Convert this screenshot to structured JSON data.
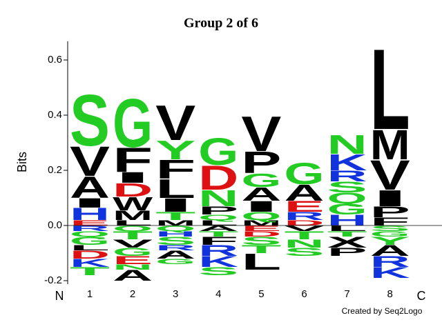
{
  "chart_data": {
    "type": "logo",
    "title": "Group 2 of 6",
    "y_label": "Bits",
    "n_label": "N",
    "c_label": "C",
    "credit": "Created by Seq2Logo",
    "categories": [
      "1",
      "2",
      "3",
      "4",
      "5",
      "6",
      "7",
      "8"
    ],
    "ylim": [
      -0.2125,
      0.6675
    ],
    "yticks": [
      -0.2,
      {
        "value": 0,
        "label": "0.0"
      },
      0.2,
      0.4,
      0.6
    ],
    "letter_colors": {
      "A": "#000000",
      "V": "#000000",
      "L": "#000000",
      "I": "#000000",
      "P": "#000000",
      "F": "#000000",
      "M": "#000000",
      "W": "#000000",
      "X": "#000000",
      "G": "#22cc22",
      "S": "#22cc22",
      "T": "#22cc22",
      "Y": "#22cc22",
      "N": "#22cc22",
      "Q": "#22cc22",
      "C": "#22cc22",
      "K": "#1133dd",
      "R": "#1133dd",
      "H": "#1133dd",
      "D": "#dd1111",
      "E": "#dd1111"
    },
    "stacks": [
      {
        "above": [
          {
            "letter": "E",
            "height": 0.02
          },
          {
            "letter": "H",
            "height": 0.045
          },
          {
            "letter": "I",
            "height": 0.035
          },
          {
            "letter": "A",
            "height": 0.08
          },
          {
            "letter": "V",
            "height": 0.11
          },
          {
            "letter": "S",
            "height": 0.19
          }
        ],
        "below": [
          {
            "letter": "R",
            "height": 0.02
          },
          {
            "letter": "Q",
            "height": 0.02
          },
          {
            "letter": "G",
            "height": 0.03
          },
          {
            "letter": "L",
            "height": 0.02
          },
          {
            "letter": "D",
            "height": 0.03
          },
          {
            "letter": "K",
            "height": 0.03
          },
          {
            "letter": "T",
            "height": 0.03
          }
        ]
      },
      {
        "above": [
          {
            "letter": "L",
            "height": 0.02
          },
          {
            "letter": "M",
            "height": 0.035
          },
          {
            "letter": "W",
            "height": 0.05
          },
          {
            "letter": "D",
            "height": 0.05
          },
          {
            "letter": "I",
            "height": 0.04
          },
          {
            "letter": "F",
            "height": 0.09
          },
          {
            "letter": "G",
            "height": 0.18
          }
        ],
        "below": [
          {
            "letter": "Q",
            "height": 0.02
          },
          {
            "letter": "T",
            "height": 0.03
          },
          {
            "letter": "V",
            "height": 0.03
          },
          {
            "letter": "G",
            "height": 0.03
          },
          {
            "letter": "E",
            "height": 0.03
          },
          {
            "letter": "N",
            "height": 0.02
          },
          {
            "letter": "A",
            "height": 0.04
          }
        ]
      },
      {
        "above": [
          {
            "letter": "M",
            "height": 0.02
          },
          {
            "letter": "T",
            "height": 0.03
          },
          {
            "letter": "I",
            "height": 0.05
          },
          {
            "letter": "L",
            "height": 0.07
          },
          {
            "letter": "F",
            "height": 0.07
          },
          {
            "letter": "Y",
            "height": 0.07
          },
          {
            "letter": "V",
            "height": 0.13
          }
        ],
        "below": [
          {
            "letter": "Q",
            "height": 0.02
          },
          {
            "letter": "H",
            "height": 0.02
          },
          {
            "letter": "S",
            "height": 0.03
          },
          {
            "letter": "R",
            "height": 0.02
          },
          {
            "letter": "A",
            "height": 0.03
          },
          {
            "letter": "G",
            "height": 0.02
          }
        ]
      },
      {
        "above": [
          {
            "letter": "L",
            "height": 0.02
          },
          {
            "letter": "Q",
            "height": 0.02
          },
          {
            "letter": "P",
            "height": 0.03
          },
          {
            "letter": "N",
            "height": 0.06
          },
          {
            "letter": "D",
            "height": 0.09
          },
          {
            "letter": "G",
            "height": 0.1
          }
        ],
        "below": [
          {
            "letter": "A",
            "height": 0.02
          },
          {
            "letter": "T",
            "height": 0.02
          },
          {
            "letter": "F",
            "height": 0.03
          },
          {
            "letter": "R",
            "height": 0.04
          },
          {
            "letter": "K",
            "height": 0.04
          },
          {
            "letter": "S",
            "height": 0.03
          }
        ]
      },
      {
        "above": [
          {
            "letter": "M",
            "height": 0.02
          },
          {
            "letter": "Q",
            "height": 0.03
          },
          {
            "letter": "I",
            "height": 0.04
          },
          {
            "letter": "A",
            "height": 0.05
          },
          {
            "letter": "G",
            "height": 0.05
          },
          {
            "letter": "P",
            "height": 0.08
          },
          {
            "letter": "V",
            "height": 0.13
          }
        ],
        "below": [
          {
            "letter": "E",
            "height": 0.02
          },
          {
            "letter": "D",
            "height": 0.02
          },
          {
            "letter": "S",
            "height": 0.03
          },
          {
            "letter": "T",
            "height": 0.03
          },
          {
            "letter": "L",
            "height": 0.06
          }
        ]
      },
      {
        "above": [
          {
            "letter": "D",
            "height": 0.02
          },
          {
            "letter": "R",
            "height": 0.03
          },
          {
            "letter": "E",
            "height": 0.04
          },
          {
            "letter": "A",
            "height": 0.06
          },
          {
            "letter": "G",
            "height": 0.08
          }
        ],
        "below": [
          {
            "letter": "V",
            "height": 0.02
          },
          {
            "letter": "T",
            "height": 0.03
          },
          {
            "letter": "N",
            "height": 0.03
          },
          {
            "letter": "S",
            "height": 0.03
          }
        ]
      },
      {
        "above": [
          {
            "letter": "H",
            "height": 0.04
          },
          {
            "letter": "G",
            "height": 0.04
          },
          {
            "letter": "Q",
            "height": 0.04
          },
          {
            "letter": "S",
            "height": 0.04
          },
          {
            "letter": "R",
            "height": 0.04
          },
          {
            "letter": "K",
            "height": 0.06
          },
          {
            "letter": "N",
            "height": 0.07
          }
        ],
        "below": [
          {
            "letter": "L",
            "height": 0.02
          },
          {
            "letter": "T",
            "height": 0.02
          },
          {
            "letter": "X",
            "height": 0.04
          },
          {
            "letter": "P",
            "height": 0.03
          }
        ]
      },
      {
        "above": [
          {
            "letter": "F",
            "height": 0.03
          },
          {
            "letter": "P",
            "height": 0.04
          },
          {
            "letter": "I",
            "height": 0.06
          },
          {
            "letter": "V",
            "height": 0.11
          },
          {
            "letter": "M",
            "height": 0.11
          },
          {
            "letter": "L",
            "height": 0.3
          }
        ],
        "below": [
          {
            "letter": "S",
            "height": 0.02
          },
          {
            "letter": "G",
            "height": 0.02
          },
          {
            "letter": "Y",
            "height": 0.03
          },
          {
            "letter": "A",
            "height": 0.04
          },
          {
            "letter": "R",
            "height": 0.04
          },
          {
            "letter": "K",
            "height": 0.04
          }
        ]
      }
    ]
  }
}
